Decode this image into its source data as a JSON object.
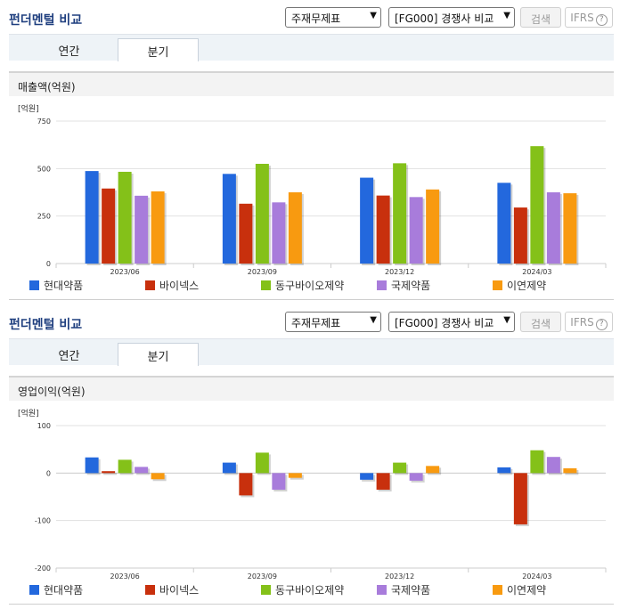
{
  "sections": [
    {
      "title": "펀더멘털 비교",
      "dropdown_1": "주재무제표",
      "dropdown_2": "[FG000] 경쟁사 비교",
      "search_button": "검색",
      "ifrs_button": "IFRS",
      "help_icon_text": "?",
      "tabs": [
        "연간",
        "분기"
      ],
      "selected_tab": "분기",
      "metric_title": "매출액(억원)",
      "chart_data": {
        "type": "bar",
        "unit_label": "[억원]",
        "categories": [
          "2023/06",
          "2023/09",
          "2023/12",
          "2024/03"
        ],
        "series": [
          {
            "name": "현대약품",
            "color": "#2368dd",
            "values": [
              487,
              472,
              452,
              425
            ]
          },
          {
            "name": "바이넥스",
            "color": "#c8300d",
            "values": [
              395,
              315,
              358,
              295
            ]
          },
          {
            "name": "동구바이오제약",
            "color": "#84c119",
            "values": [
              483,
              525,
              528,
              618
            ]
          },
          {
            "name": "국제약품",
            "color": "#a87cdb",
            "values": [
              357,
              322,
              350,
              375
            ]
          },
          {
            "name": "이연제약",
            "color": "#f89a10",
            "values": [
              380,
              375,
              390,
              370
            ]
          }
        ],
        "ylim": [
          0,
          750
        ],
        "yticks": [
          0,
          250,
          500,
          750
        ],
        "grid": true,
        "legend_position": "bottom"
      }
    },
    {
      "title": "펀더멘털 비교",
      "dropdown_1": "주재무제표",
      "dropdown_2": "[FG000] 경쟁사 비교",
      "search_button": "검색",
      "ifrs_button": "IFRS",
      "help_icon_text": "?",
      "tabs": [
        "연간",
        "분기"
      ],
      "selected_tab": "분기",
      "metric_title": "영업이익(억원)",
      "chart_data": {
        "type": "bar",
        "unit_label": "[억원]",
        "categories": [
          "2023/06",
          "2023/09",
          "2023/12",
          "2024/03"
        ],
        "series": [
          {
            "name": "현대약품",
            "color": "#2368dd",
            "values": [
              33,
              22,
              -14,
              12
            ]
          },
          {
            "name": "바이넥스",
            "color": "#c8300d",
            "values": [
              4,
              -47,
              -35,
              -108
            ]
          },
          {
            "name": "동구바이오제약",
            "color": "#84c119",
            "values": [
              28,
              43,
              22,
              48
            ]
          },
          {
            "name": "국제약품",
            "color": "#a87cdb",
            "values": [
              13,
              -35,
              -16,
              34
            ]
          },
          {
            "name": "이연제약",
            "color": "#f89a10",
            "values": [
              -13,
              -10,
              15,
              10
            ]
          }
        ],
        "ylim": [
          -200,
          100
        ],
        "yticks": [
          -200,
          -100,
          0,
          100
        ],
        "grid": true,
        "legend_position": "bottom"
      }
    }
  ]
}
